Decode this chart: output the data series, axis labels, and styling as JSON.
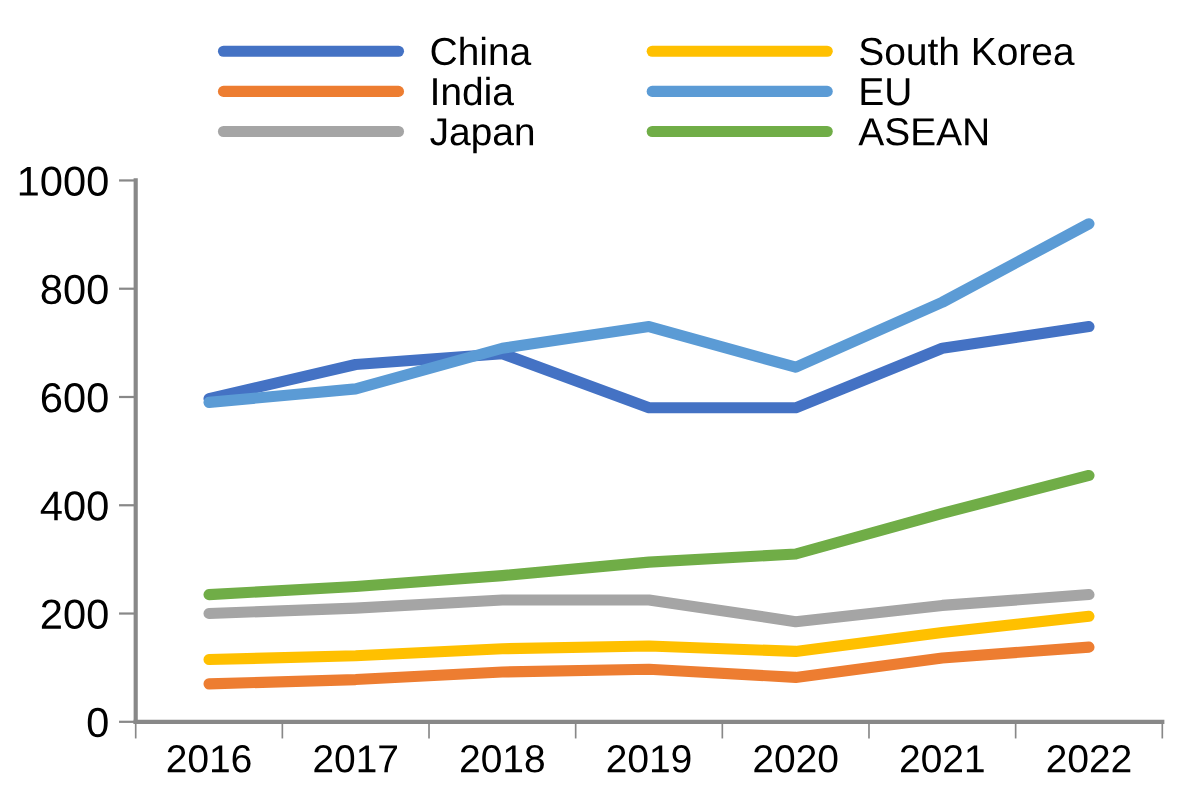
{
  "chart_data": {
    "type": "line",
    "categories": [
      "2016",
      "2017",
      "2018",
      "2019",
      "2020",
      "2021",
      "2022"
    ],
    "series": [
      {
        "name": "China",
        "color": "#4472c4",
        "values": [
          597,
          660,
          680,
          580,
          580,
          690,
          730
        ]
      },
      {
        "name": "India",
        "color": "#ed7d31",
        "values": [
          70,
          78,
          92,
          97,
          82,
          118,
          138
        ]
      },
      {
        "name": "Japan",
        "color": "#a5a5a5",
        "values": [
          200,
          210,
          225,
          225,
          185,
          215,
          235
        ]
      },
      {
        "name": "South Korea",
        "color": "#ffc000",
        "values": [
          115,
          122,
          135,
          140,
          130,
          165,
          195
        ]
      },
      {
        "name": "EU",
        "color": "#5b9bd5",
        "values": [
          590,
          615,
          690,
          730,
          655,
          775,
          920
        ]
      },
      {
        "name": "ASEAN",
        "color": "#70ad47",
        "values": [
          235,
          250,
          270,
          295,
          310,
          385,
          455
        ]
      }
    ],
    "ylim": [
      0,
      1000
    ],
    "yticks": [
      0,
      200,
      400,
      600,
      800,
      1000
    ],
    "grid": false,
    "legend": "top",
    "marker": "none",
    "line_style": "solid"
  }
}
